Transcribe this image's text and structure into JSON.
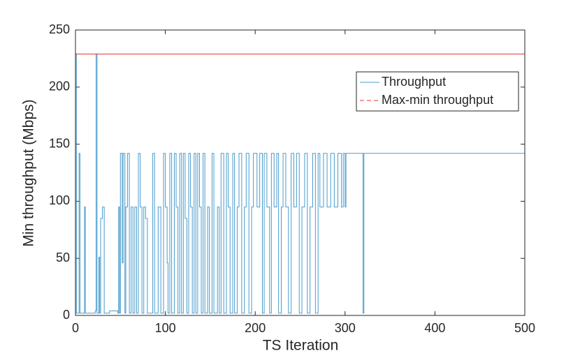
{
  "chart_data": {
    "type": "line",
    "xlabel": "TS Iteration",
    "ylabel": "Min throughput (Mbps)",
    "xlim": [
      0,
      500
    ],
    "xticks": [
      0,
      100,
      200,
      300,
      400,
      500
    ],
    "ylim": [
      0,
      250
    ],
    "yticks": [
      0,
      50,
      100,
      150,
      200,
      250
    ],
    "step": true,
    "legend_position": "northeast",
    "series": [
      {
        "name": "Throughput",
        "color": "#4a9ccc",
        "x": [
          0,
          1,
          4,
          5,
          10,
          11,
          22,
          23,
          24,
          26,
          27,
          28,
          30,
          32,
          38,
          47,
          48,
          49,
          50,
          52,
          53,
          55,
          56,
          58,
          60,
          62,
          64,
          66,
          68,
          70,
          72,
          74,
          76,
          78,
          80,
          86,
          88,
          92,
          95,
          98,
          100,
          102,
          103,
          105,
          107,
          110,
          112,
          114,
          116,
          118,
          120,
          122,
          124,
          126,
          128,
          130,
          132,
          134,
          136,
          138,
          140,
          142,
          144,
          147,
          149,
          152,
          154,
          158,
          160,
          162,
          165,
          168,
          170,
          172,
          175,
          177,
          180,
          182,
          185,
          188,
          190,
          193,
          196,
          198,
          202,
          205,
          208,
          210,
          213,
          216,
          218,
          221,
          224,
          226,
          229,
          231,
          234,
          237,
          240,
          243,
          246,
          249,
          252,
          255,
          258,
          261,
          264,
          267,
          270,
          272,
          276,
          280,
          284,
          288,
          292,
          296,
          298,
          300,
          301,
          320,
          321,
          500
        ],
        "values": [
          229,
          2,
          142,
          2,
          95,
          2,
          4,
          229,
          2,
          51,
          2,
          85,
          95,
          2,
          4,
          2,
          95,
          2,
          142,
          46,
          142,
          2,
          95,
          142,
          2,
          95,
          2,
          95,
          2,
          142,
          95,
          2,
          95,
          85,
          2,
          142,
          2,
          95,
          2,
          142,
          95,
          46,
          2,
          142,
          2,
          142,
          95,
          2,
          142,
          2,
          142,
          85,
          2,
          142,
          95,
          2,
          142,
          2,
          142,
          95,
          2,
          142,
          2,
          95,
          2,
          142,
          2,
          95,
          2,
          142,
          2,
          142,
          95,
          2,
          142,
          2,
          95,
          142,
          2,
          95,
          142,
          2,
          95,
          142,
          95,
          142,
          2,
          142,
          95,
          2,
          142,
          95,
          142,
          2,
          95,
          142,
          95,
          2,
          142,
          95,
          142,
          2,
          95,
          142,
          2,
          95,
          142,
          2,
          142,
          95,
          142,
          95,
          142,
          95,
          142,
          95,
          142,
          95,
          142,
          2,
          142,
          142
        ]
      },
      {
        "name": "Max-min throughput",
        "color": "#e8312a",
        "x": [
          0,
          500
        ],
        "values": [
          229,
          229
        ]
      }
    ]
  }
}
